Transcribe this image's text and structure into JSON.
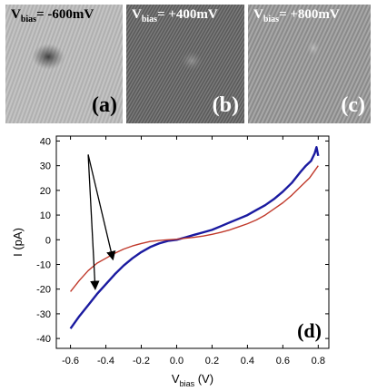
{
  "panels": [
    {
      "bias_label": "V",
      "bias_sub": "bias",
      "bias_value": "= -600mV",
      "panel_label": "(a)"
    },
    {
      "bias_label": "V",
      "bias_sub": "bias",
      "bias_value": "= +400mV",
      "panel_label": "(b)"
    },
    {
      "bias_label": "V",
      "bias_sub": "bias",
      "bias_value": "= +800mV",
      "panel_label": "(c)"
    }
  ],
  "chart_data": {
    "type": "line",
    "panel_label": "(d)",
    "xlabel": "V",
    "xlabel_sub": "bias",
    "xlabel_unit": " (V)",
    "ylabel": "I  (pA)",
    "xlim": [
      -0.68,
      0.86
    ],
    "ylim": [
      -44,
      42
    ],
    "xticks": [
      "-0.6",
      "-0.4",
      "-0.2",
      "0.0",
      "0.2",
      "0.4",
      "0.6",
      "0.8"
    ],
    "xtick_values": [
      -0.6,
      -0.4,
      -0.2,
      0.0,
      0.2,
      0.4,
      0.6,
      0.8
    ],
    "yticks": [
      "-40",
      "-30",
      "-20",
      "-10",
      "0",
      "10",
      "20",
      "30",
      "40"
    ],
    "ytick_values": [
      -40,
      -30,
      -20,
      -10,
      0,
      10,
      20,
      30,
      40
    ],
    "series": [
      {
        "color": "#1a1aa0",
        "x": [
          -0.6,
          -0.55,
          -0.5,
          -0.45,
          -0.4,
          -0.35,
          -0.3,
          -0.25,
          -0.2,
          -0.15,
          -0.1,
          -0.05,
          0.0,
          0.05,
          0.1,
          0.15,
          0.2,
          0.25,
          0.3,
          0.35,
          0.4,
          0.45,
          0.5,
          0.55,
          0.6,
          0.65,
          0.7,
          0.73,
          0.76,
          0.78,
          0.79,
          0.8
        ],
        "y": [
          -36,
          -31,
          -26.5,
          -22,
          -18,
          -14,
          -10.5,
          -7.5,
          -5,
          -3,
          -1.5,
          -0.5,
          0,
          1,
          2,
          3,
          4,
          5.5,
          7,
          8.5,
          10,
          12,
          14,
          16.5,
          19.5,
          23,
          27.5,
          30,
          32,
          35,
          37.5,
          34
        ]
      },
      {
        "color": "#c0392b",
        "x": [
          -0.6,
          -0.55,
          -0.5,
          -0.45,
          -0.4,
          -0.35,
          -0.3,
          -0.25,
          -0.2,
          -0.15,
          -0.1,
          -0.05,
          0.0,
          0.05,
          0.1,
          0.15,
          0.2,
          0.25,
          0.3,
          0.35,
          0.4,
          0.45,
          0.5,
          0.55,
          0.6,
          0.65,
          0.7,
          0.75,
          0.8
        ],
        "y": [
          -21,
          -16.5,
          -12.5,
          -9.5,
          -7.5,
          -5.5,
          -3.8,
          -2.5,
          -1.5,
          -0.7,
          -0.3,
          0,
          0.2,
          0.6,
          1,
          1.5,
          2.2,
          3,
          4,
          5.2,
          6.5,
          8,
          10,
          12.5,
          15,
          18,
          21.5,
          25,
          30
        ]
      }
    ],
    "annotations": [
      {
        "from": [
          -0.5,
          34.5
        ],
        "to": [
          -0.36,
          -8
        ],
        "arrow": "to"
      },
      {
        "from": [
          -0.5,
          34.5
        ],
        "to": [
          -0.46,
          -20
        ],
        "arrow": "to"
      }
    ]
  }
}
